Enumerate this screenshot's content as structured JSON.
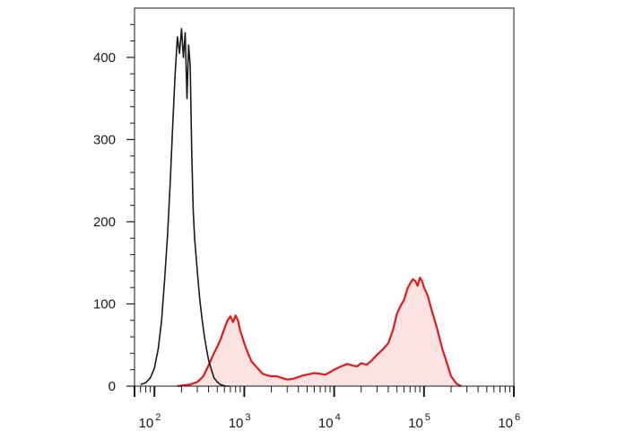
{
  "chart_data": {
    "type": "area",
    "title": "",
    "xlabel": "",
    "ylabel": "",
    "x_scale": "log10",
    "xlim": [
      60,
      1000000
    ],
    "ylim": [
      0,
      460
    ],
    "grid": false,
    "y_ticks": [
      {
        "value": 0,
        "label": "0"
      },
      {
        "value": 100,
        "label": "100"
      },
      {
        "value": 200,
        "label": "200"
      },
      {
        "value": 300,
        "label": "300"
      },
      {
        "value": 400,
        "label": "400"
      }
    ],
    "x_ticks": [
      {
        "value": 100,
        "base": "10",
        "exp": "2"
      },
      {
        "value": 1000,
        "base": "10",
        "exp": "3"
      },
      {
        "value": 10000,
        "base": "10",
        "exp": "4"
      },
      {
        "value": 100000,
        "base": "10",
        "exp": "5"
      },
      {
        "value": 1000000,
        "base": "10",
        "exp": "6"
      }
    ],
    "series": [
      {
        "color": "#1a1a1a",
        "fill": "none",
        "x": [
          70,
          80,
          90,
          100,
          110,
          120,
          130,
          140,
          150,
          160,
          170,
          180,
          190,
          200,
          210,
          220,
          230,
          240,
          250,
          260,
          270,
          280,
          300,
          320,
          340,
          360,
          380,
          400,
          430,
          460,
          500,
          540,
          580,
          620,
          680
        ],
        "y": [
          2,
          4,
          10,
          22,
          45,
          80,
          130,
          185,
          250,
          320,
          380,
          425,
          405,
          435,
          400,
          430,
          350,
          415,
          390,
          285,
          215,
          180,
          140,
          105,
          80,
          60,
          45,
          32,
          20,
          10,
          5,
          2,
          1,
          0,
          0
        ]
      },
      {
        "color": "#e8191a",
        "fill": "#fbe3e3",
        "x": [
          180,
          250,
          300,
          350,
          400,
          450,
          500,
          550,
          600,
          650,
          700,
          750,
          800,
          850,
          900,
          1000,
          1100,
          1200,
          1400,
          1600,
          1800,
          2000,
          2300,
          2600,
          3000,
          3500,
          4000,
          4500,
          5000,
          6000,
          7000,
          8000,
          9000,
          10000,
          12000,
          14000,
          16000,
          18000,
          20000,
          23000,
          26000,
          30000,
          35000,
          40000,
          45000,
          50000,
          55000,
          60000,
          65000,
          70000,
          75000,
          80000,
          85000,
          90000,
          95000,
          100000,
          110000,
          120000,
          140000,
          160000,
          180000,
          200000,
          230000,
          260000
        ],
        "y": [
          0,
          2,
          5,
          12,
          25,
          38,
          48,
          58,
          70,
          80,
          85,
          78,
          86,
          80,
          68,
          52,
          40,
          30,
          22,
          15,
          13,
          12,
          12,
          10,
          8,
          9,
          11,
          13,
          14,
          16,
          15,
          14,
          17,
          20,
          24,
          27,
          25,
          24,
          28,
          26,
          31,
          38,
          45,
          52,
          68,
          88,
          98,
          105,
          118,
          125,
          130,
          128,
          122,
          132,
          128,
          120,
          110,
          95,
          70,
          45,
          28,
          12,
          3,
          0
        ]
      }
    ]
  }
}
